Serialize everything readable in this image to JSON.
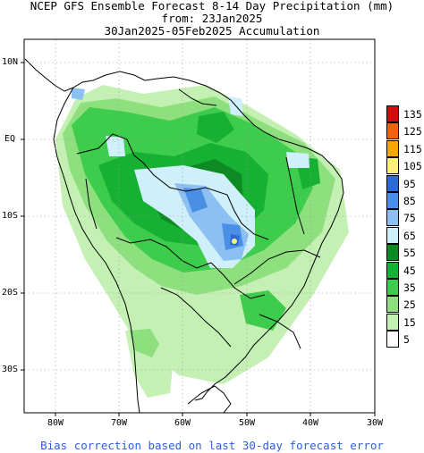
{
  "title": {
    "line1": "NCEP GFS Ensemble Forecast 8-14 Day Precipitation (mm)",
    "line2": "from: 23Jan2025",
    "line3": "30Jan2025-05Feb2025 Accumulation"
  },
  "axes": {
    "lat_labels": [
      "10N",
      "EQ",
      "10S",
      "20S",
      "30S"
    ],
    "lon_labels": [
      "80W",
      "70W",
      "60W",
      "50W",
      "40W",
      "30W"
    ],
    "lat_range": [
      "12N",
      "35S"
    ],
    "lon_range": [
      "85W",
      "30W"
    ],
    "grid": "dotted"
  },
  "legend": {
    "values": [
      "135",
      "125",
      "115",
      "105",
      "95",
      "85",
      "75",
      "65",
      "55",
      "45",
      "35",
      "25",
      "15",
      "5"
    ],
    "colors": [
      "#d01010",
      "#f06410",
      "#f5a70a",
      "#fff07a",
      "#2a6bd6",
      "#4a8fe6",
      "#8cc0f2",
      "#cfeffa",
      "#0e8a24",
      "#16b032",
      "#3ecc4c",
      "#8ee07e",
      "#c4f0b4",
      "#ffffff"
    ]
  },
  "footer": "Bias correction based on last 30-day forecast error"
}
